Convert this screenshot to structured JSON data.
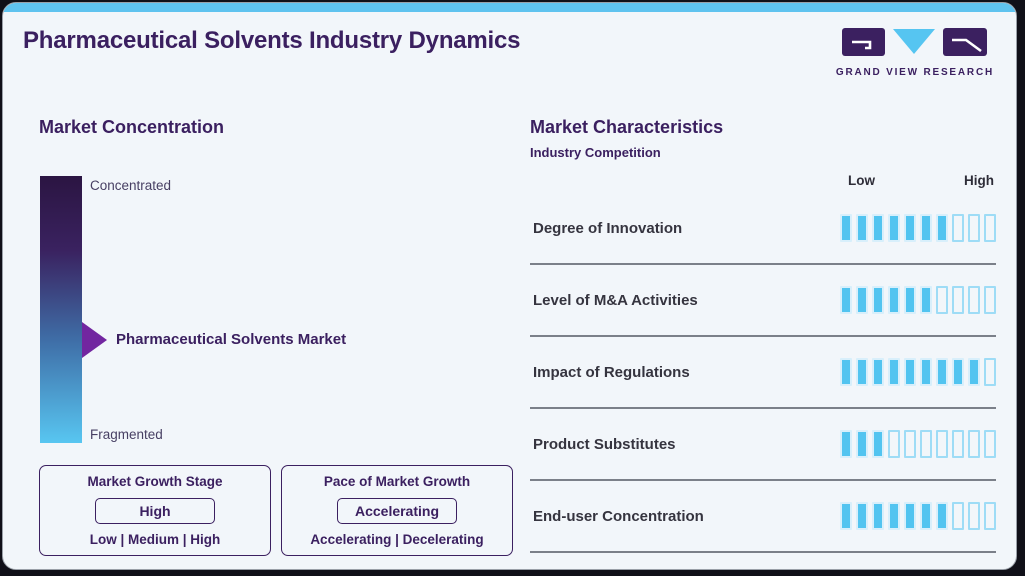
{
  "page": {
    "title": "Pharmaceutical Solvents Industry Dynamics",
    "brand_name": "GRAND VIEW RESEARCH"
  },
  "colors": {
    "brand_purple": "#3b2060",
    "accent_blue": "#52c4f0",
    "top_strip_blue": "#5fc3ef",
    "card_background": "#f2f6fa",
    "gradient_top": "#2b1542",
    "gradient_bottom": "#58c6f1",
    "marker_purple": "#7226a0"
  },
  "concentration": {
    "heading": "Market Concentration",
    "scale_top": "Concentrated",
    "scale_bottom": "Fragmented",
    "marker_label": "Pharmaceutical Solvents Market"
  },
  "growth_stage": {
    "title": "Market Growth Stage",
    "value": "High",
    "options": "Low | Medium | High"
  },
  "growth_pace": {
    "title": "Pace of Market Growth",
    "value": "Accelerating",
    "options": "Accelerating | Decelerating"
  },
  "characteristics": {
    "heading": "Market Characteristics",
    "subheading": "Industry Competition",
    "scale_low": "Low",
    "scale_high": "High",
    "scale_max": 10,
    "rows": [
      {
        "label": "Degree of Innovation",
        "value": 7
      },
      {
        "label": "Level of M&A Activities",
        "value": 6
      },
      {
        "label": "Impact of Regulations",
        "value": 9
      },
      {
        "label": "Product Substitutes",
        "value": 3
      },
      {
        "label": "End-user Concentration",
        "value": 7
      }
    ]
  },
  "chart_data": {
    "type": "bar",
    "title": "Market Characteristics — Industry Competition",
    "categories": [
      "Degree of Innovation",
      "Level of M&A Activities",
      "Impact of Regulations",
      "Product Substitutes",
      "End-user Concentration"
    ],
    "values": [
      7,
      6,
      9,
      3,
      7
    ],
    "value_max": 10,
    "scale_labels": [
      "Low",
      "High"
    ],
    "concentration_scale": {
      "top": "Concentrated",
      "bottom": "Fragmented",
      "marker": "Pharmaceutical Solvents Market",
      "marker_position": "lower-middle (toward Fragmented)"
    },
    "market_growth_stage": "High",
    "pace_of_market_growth": "Accelerating"
  }
}
